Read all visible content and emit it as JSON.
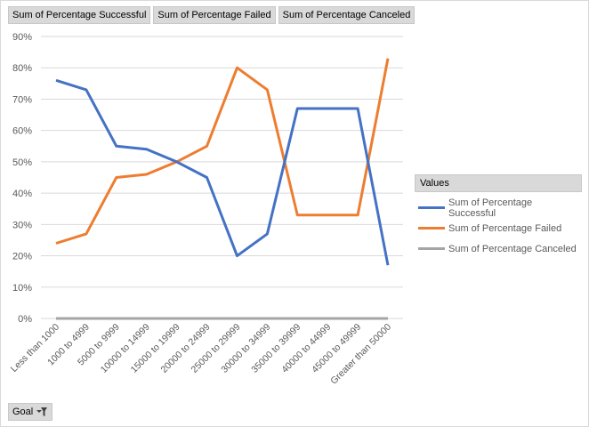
{
  "field_buttons": [
    "Sum of Percentage Successful",
    "Sum of Percentage Failed",
    "Sum of Percentage Canceled"
  ],
  "filter": {
    "label": "Goal"
  },
  "legend": {
    "title": "Values"
  },
  "colors": {
    "successful": "#4472c4",
    "failed": "#ed7d31",
    "canceled": "#a5a5a5",
    "grid": "#d9d9d9"
  },
  "chart_data": {
    "type": "line",
    "categories": [
      "Less than 1000",
      "1000 to 4999",
      "5000 to 9999",
      "10000 to 14999",
      "15000 to 19999",
      "20000 to 24999",
      "25000 to 29999",
      "30000 to 34999",
      "35000 to 39999",
      "40000 to 44999",
      "45000 to 49999",
      "Greater than 50000"
    ],
    "series": [
      {
        "name": "Sum of Percentage Successful",
        "color": "#4472c4",
        "values": [
          0.76,
          0.73,
          0.55,
          0.54,
          0.5,
          0.45,
          0.2,
          0.27,
          0.67,
          0.67,
          0.67,
          0.17
        ]
      },
      {
        "name": "Sum of Percentage Failed",
        "color": "#ed7d31",
        "values": [
          0.24,
          0.27,
          0.45,
          0.46,
          0.5,
          0.55,
          0.8,
          0.73,
          0.33,
          0.33,
          0.33,
          0.83
        ]
      },
      {
        "name": "Sum of Percentage Canceled",
        "color": "#a5a5a5",
        "values": [
          0,
          0,
          0,
          0,
          0,
          0,
          0,
          0,
          0,
          0,
          0,
          0
        ]
      }
    ],
    "ylim": [
      0,
      0.9
    ],
    "y_ticks": [
      0,
      0.1,
      0.2,
      0.3,
      0.4,
      0.5,
      0.6,
      0.7,
      0.8,
      0.9
    ],
    "y_tick_labels": [
      "0%",
      "10%",
      "20%",
      "30%",
      "40%",
      "50%",
      "60%",
      "70%",
      "80%",
      "90%"
    ],
    "xlabel": "",
    "ylabel": "",
    "grid": true,
    "legend_position": "right"
  }
}
